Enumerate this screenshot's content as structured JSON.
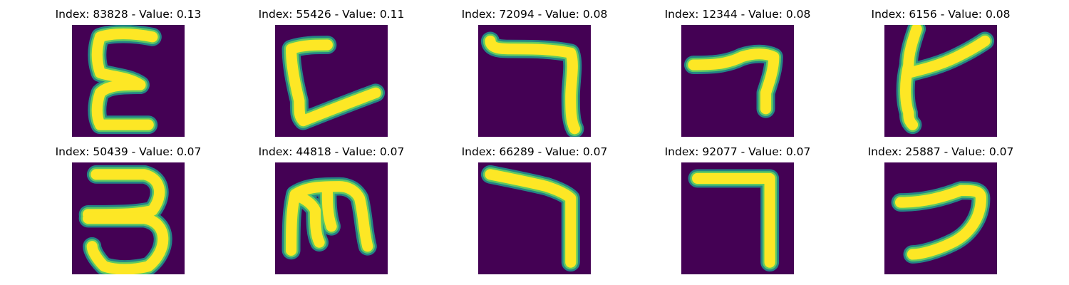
{
  "figure": {
    "colormap": {
      "background": "#440154",
      "edge": "#21918c",
      "mid": "#5ec962",
      "stroke": "#fde725"
    },
    "panels": [
      {
        "title": "Index: 83828 - Value: 0.13",
        "index": 83828,
        "value": 0.13,
        "glyph": "epsilon"
      },
      {
        "title": "Index: 55426 - Value: 0.11",
        "index": 55426,
        "value": 0.11,
        "glyph": "bracket-c"
      },
      {
        "title": "Index: 72094 - Value: 0.08",
        "index": 72094,
        "value": 0.08,
        "glyph": "seven-hook"
      },
      {
        "title": "Index: 12344 - Value: 0.08",
        "index": 12344,
        "value": 0.08,
        "glyph": "slanted-seven"
      },
      {
        "title": "Index: 6156 - Value: 0.08",
        "index": 6156,
        "value": 0.08,
        "glyph": "k-shape"
      },
      {
        "title": "Index: 50439 - Value: 0.07",
        "index": 50439,
        "value": 0.07,
        "glyph": "three"
      },
      {
        "title": "Index: 44818 - Value: 0.07",
        "index": 44818,
        "value": 0.07,
        "glyph": "m-shape"
      },
      {
        "title": "Index: 66289 - Value: 0.07",
        "index": 66289,
        "value": 0.07,
        "glyph": "seven-thin"
      },
      {
        "title": "Index: 92077 - Value: 0.07",
        "index": 92077,
        "value": 0.07,
        "glyph": "seven-straight"
      },
      {
        "title": "Index: 25887 - Value: 0.07",
        "index": 25887,
        "value": 0.07,
        "glyph": "two-hook"
      }
    ]
  }
}
